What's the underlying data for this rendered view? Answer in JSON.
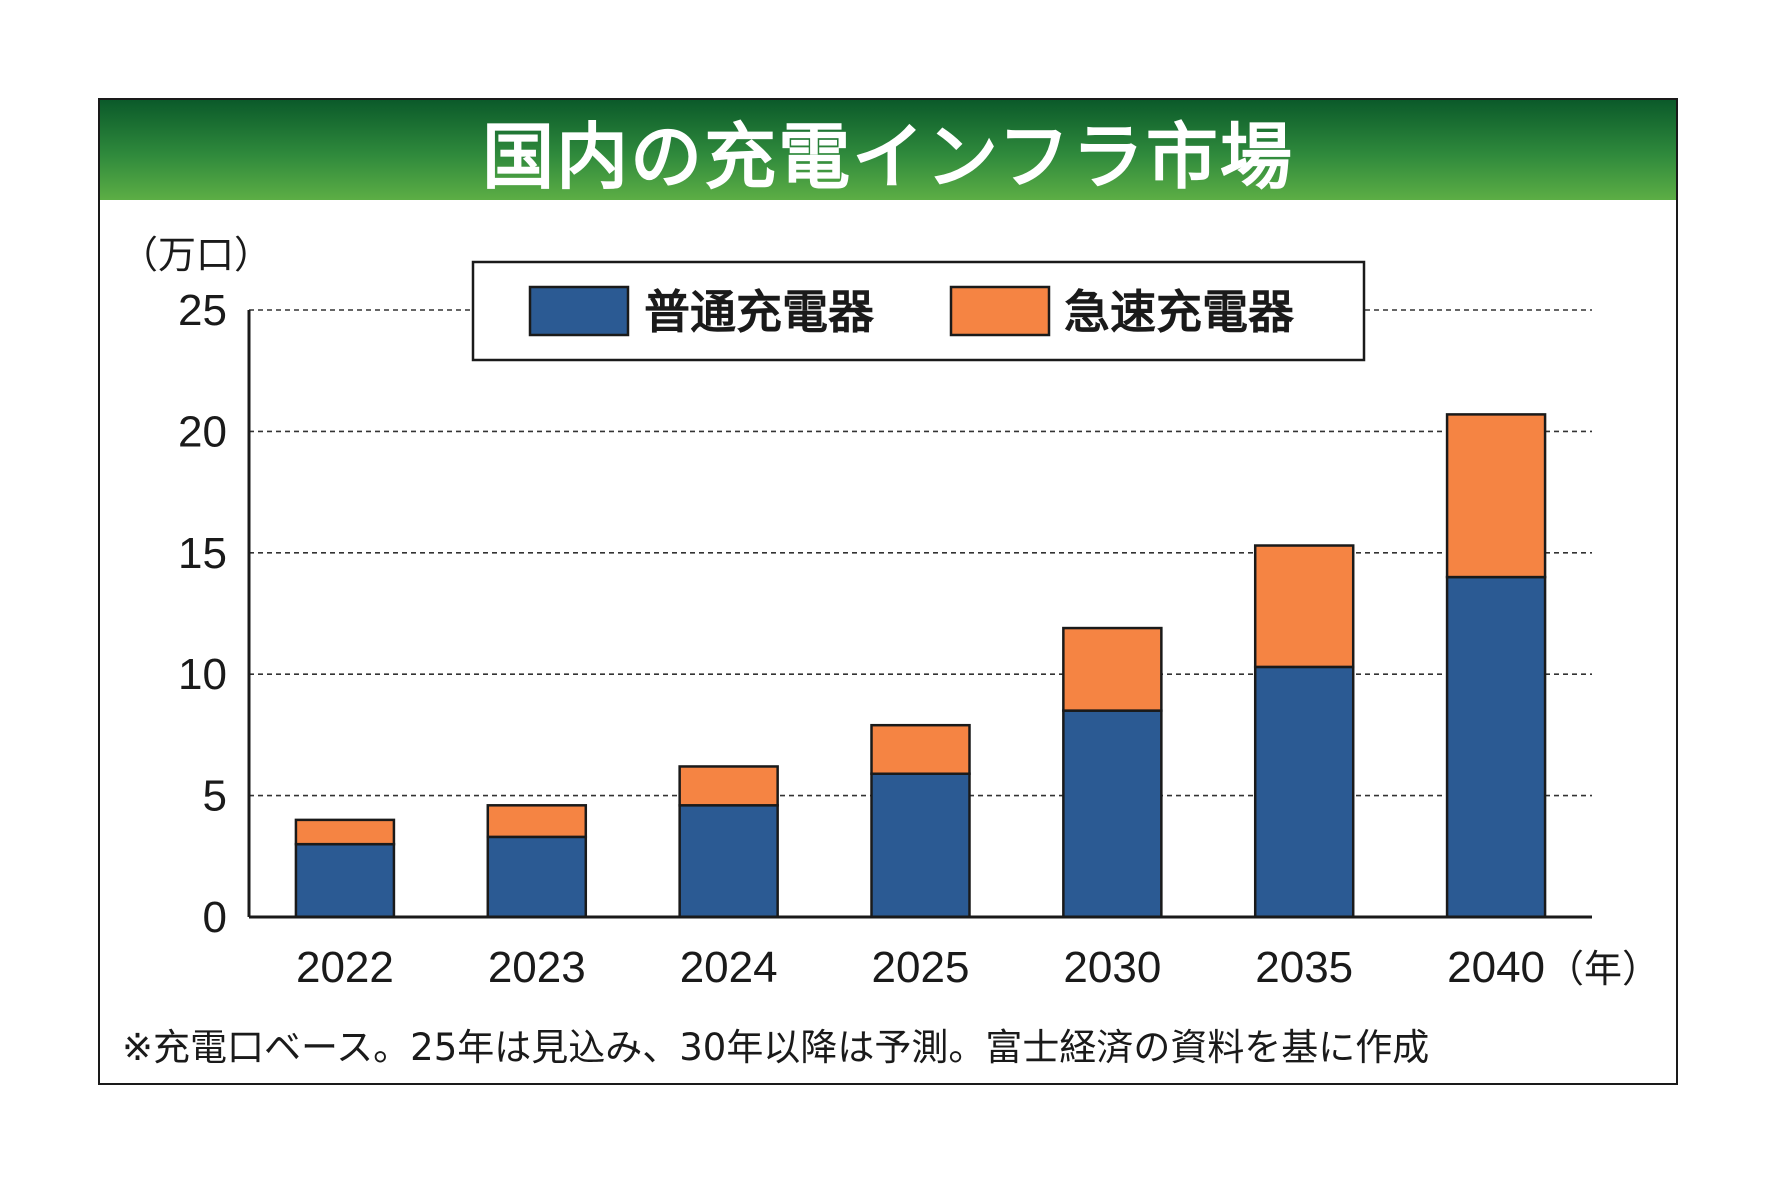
{
  "title": "国内の充電インフラ市場",
  "note": "※充電口ベース。25年は見込み、30年以降は予測。富士経済の資料を基に作成",
  "colors": {
    "normal": "#2b5a93",
    "fast": "#f58443",
    "title_bar_top": "#0b5a2a",
    "title_bar_bottom": "#5cae45"
  },
  "chart_data": {
    "type": "bar",
    "stacked": true,
    "categories": [
      "2022",
      "2023",
      "2024",
      "2025",
      "2030",
      "2035",
      "2040"
    ],
    "series": [
      {
        "name": "普通充電器",
        "values": [
          3.0,
          3.3,
          4.6,
          5.9,
          8.5,
          10.3,
          14.0
        ]
      },
      {
        "name": "急速充電器",
        "values": [
          1.0,
          1.3,
          1.6,
          2.0,
          3.4,
          5.0,
          6.7
        ]
      }
    ],
    "ylabel": "（万口）",
    "xlabel": "（年）",
    "ylim": [
      0,
      25
    ],
    "yticks": [
      0,
      5,
      10,
      15,
      20,
      25
    ],
    "grid": true,
    "legend_position": "top-center"
  }
}
